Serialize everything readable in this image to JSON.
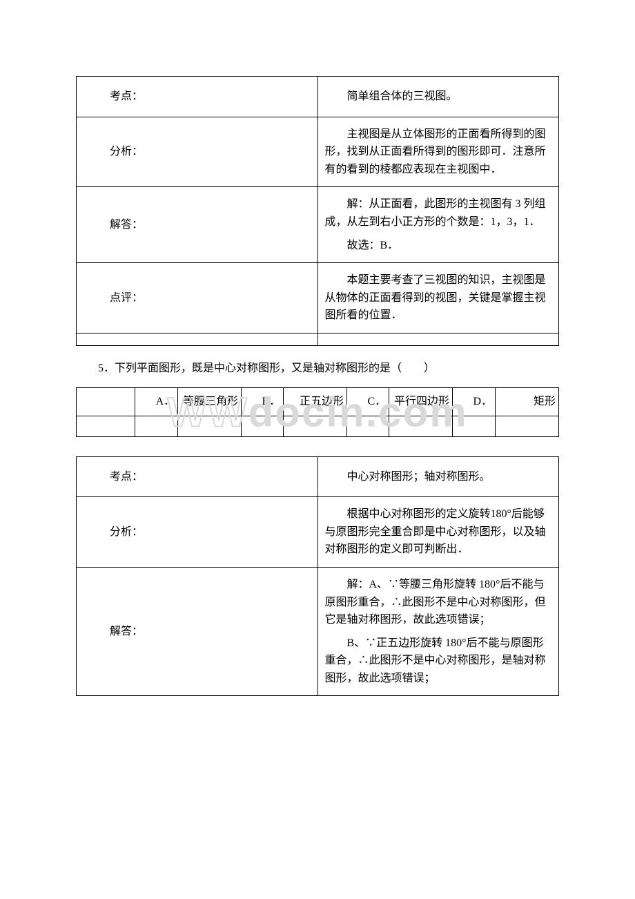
{
  "colors": {
    "text": "#000000",
    "border": "#000000",
    "watermark": "#d9d9d9",
    "background": "#ffffff"
  },
  "typography": {
    "body_font": "SimSun",
    "body_size_pt": 12,
    "line_height": 1.6,
    "watermark_font": "Arial",
    "watermark_size_pt": 45,
    "watermark_weight": 700
  },
  "table1": {
    "rows": [
      {
        "label": "考点：",
        "paras": [
          "简单组合体的三视图。"
        ]
      },
      {
        "label": "分析：",
        "paras": [
          "主视图是从立体图形的正面看所得到的图形，找到从正面看所得到的图形即可．注意所有的看到的棱都应表现在主视图中．"
        ]
      },
      {
        "label": "解答：",
        "paras": [
          "解：从正面看，此图形的主视图有 3 列组成，从左到右小正方形的个数是：1，3，1．",
          "故选：B．"
        ]
      },
      {
        "label": "点评：",
        "paras": [
          "本题主要考查了三视图的知识，主视图是从物体的正面看得到的视图，关键是掌握主视图所看的位置．"
        ]
      }
    ]
  },
  "question5": "5．下列平面图形，既是中心对称图形，又是轴对称图形的是（　　）",
  "options": {
    "items": [
      {
        "letter": "A．",
        "text": "等腰三角形"
      },
      {
        "letter": "B．",
        "text": "正五边形"
      },
      {
        "letter": "C．",
        "text": "平行四边形"
      },
      {
        "letter": "D．",
        "text": "矩形"
      }
    ]
  },
  "watermark": {
    "outline": "WW",
    "solid": "docin.com"
  },
  "table2": {
    "rows": [
      {
        "label": "考点：",
        "paras": [
          "中心对称图形；轴对称图形。"
        ]
      },
      {
        "label": "分析：",
        "paras": [
          "根据中心对称图形的定义旋转180°后能够与原图形完全重合即是中心对称图形，以及轴对称图形的定义即可判断出．"
        ]
      },
      {
        "label": "解答：",
        "paras": [
          "解：A、∵等腰三角形旋转 180°后不能与原图形重合，∴此图形不是中心对称图形，但它是轴对称图形，故此选项错误；",
          "B、∵正五边形旋转 180°后不能与原图形重合，∴此图形不是中心对称图形，是轴对称图形，故此选项错误；"
        ]
      }
    ]
  }
}
